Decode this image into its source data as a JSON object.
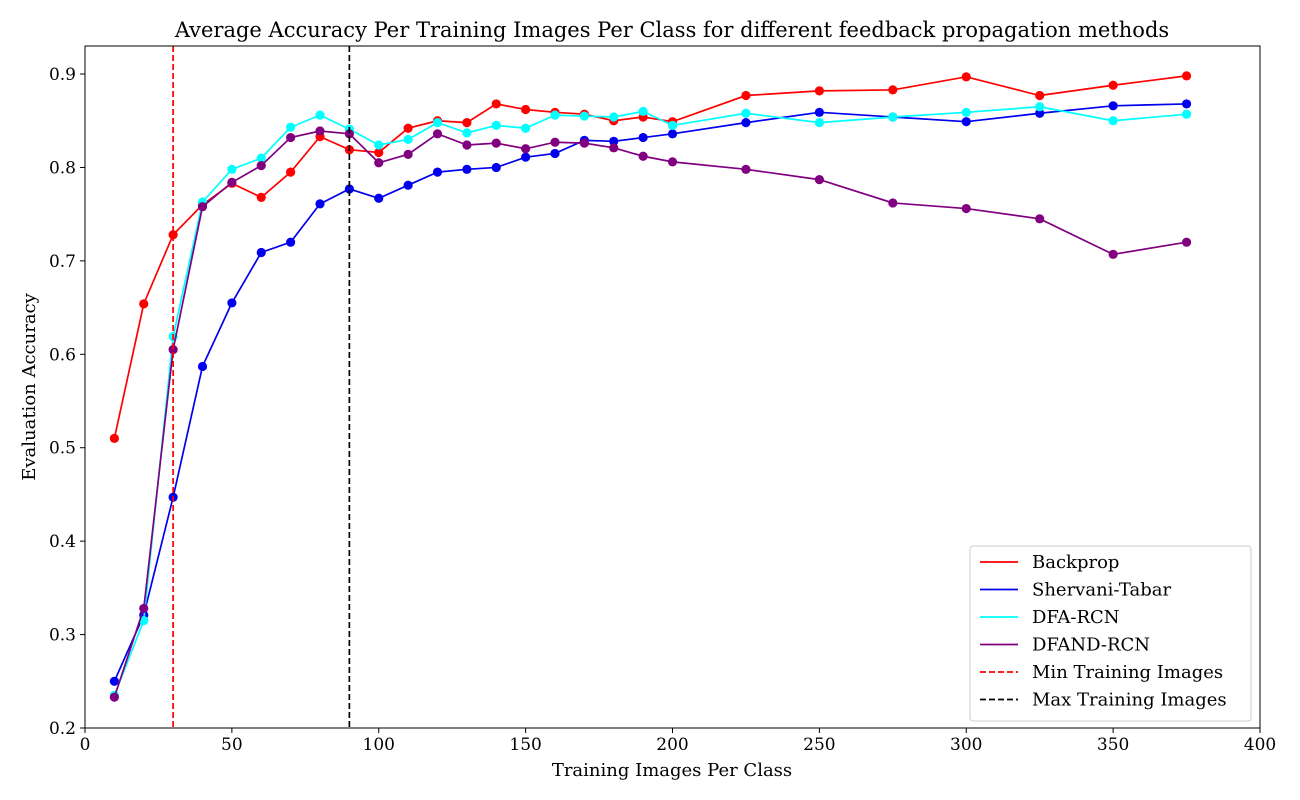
{
  "chart_data": {
    "type": "line",
    "title": "Average Accuracy Per Training Images Per Class for different feedback propagation methods",
    "xlabel": "Training Images Per Class",
    "ylabel": "Evaluation Accuracy",
    "xlim": [
      0,
      400
    ],
    "ylim": [
      0.2,
      0.93
    ],
    "xticks": [
      0,
      50,
      100,
      150,
      200,
      250,
      300,
      350,
      400
    ],
    "yticks": [
      0.2,
      0.3,
      0.4,
      0.5,
      0.6,
      0.7,
      0.8,
      0.9
    ],
    "grid": false,
    "legend_position": "bottom-right",
    "x": [
      10,
      20,
      30,
      40,
      50,
      60,
      70,
      80,
      90,
      100,
      110,
      120,
      130,
      140,
      150,
      160,
      170,
      180,
      190,
      200,
      225,
      250,
      275,
      300,
      325,
      350,
      375
    ],
    "series": [
      {
        "name": "Backprop",
        "color": "#ff0000",
        "values": [
          0.51,
          0.654,
          0.728,
          0.76,
          0.783,
          0.768,
          0.795,
          0.833,
          0.819,
          0.816,
          0.842,
          0.85,
          0.848,
          0.868,
          0.862,
          0.859,
          0.857,
          0.85,
          0.854,
          0.849,
          0.877,
          0.882,
          0.883,
          0.897,
          0.877,
          0.888,
          0.898
        ]
      },
      {
        "name": "Shervani-Tabar",
        "color": "#0000ee",
        "values": [
          0.25,
          0.321,
          0.447,
          0.587,
          0.655,
          0.709,
          0.72,
          0.761,
          0.777,
          0.767,
          0.781,
          0.795,
          0.798,
          0.8,
          0.811,
          0.815,
          0.829,
          0.828,
          0.832,
          0.836,
          0.848,
          0.859,
          0.854,
          0.849,
          0.858,
          0.866,
          0.868
        ]
      },
      {
        "name": "DFA-RCN",
        "color": "#00ffff",
        "values": [
          0.235,
          0.315,
          0.619,
          0.763,
          0.798,
          0.81,
          0.843,
          0.856,
          0.841,
          0.824,
          0.83,
          0.848,
          0.837,
          0.845,
          0.842,
          0.856,
          0.855,
          0.854,
          0.86,
          0.845,
          0.858,
          0.848,
          0.854,
          0.859,
          0.865,
          0.85,
          0.857
        ]
      },
      {
        "name": "DFAND-RCN",
        "color": "#800080",
        "values": [
          0.233,
          0.328,
          0.605,
          0.758,
          0.784,
          0.802,
          0.832,
          0.839,
          0.836,
          0.805,
          0.814,
          0.836,
          0.824,
          0.826,
          0.82,
          0.827,
          0.826,
          0.821,
          0.812,
          0.806,
          0.798,
          0.787,
          0.762,
          0.756,
          0.745,
          0.707,
          0.72
        ]
      }
    ],
    "vlines": [
      {
        "name": "Min Training Images",
        "x": 30,
        "color": "#ff0000",
        "style": "dashed"
      },
      {
        "name": "Max Training Images",
        "x": 90,
        "color": "#000000",
        "style": "dashed"
      }
    ]
  }
}
